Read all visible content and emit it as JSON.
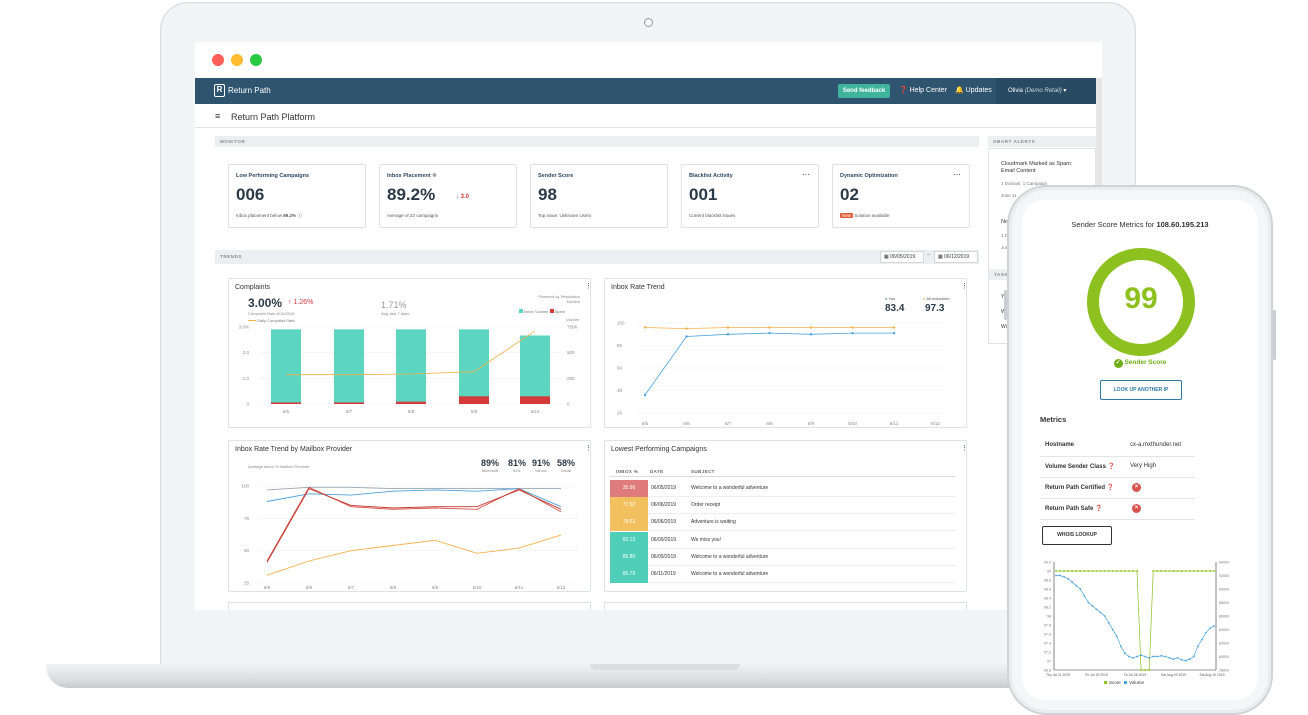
{
  "app": {
    "logo": "Return Path",
    "feedback_label": "Send feedback",
    "help_label": "Help Center",
    "updates_label": "Updates",
    "user_name": "Olivia",
    "user_account": "(Demo Retail)",
    "page_title": "Return Path Platform"
  },
  "monitor": {
    "section_label": "MONITOR",
    "cards": [
      {
        "title": "Low Performing Campaigns",
        "value": "006",
        "delta": "",
        "sub": "Inbox placement below",
        "sub_value": "89.2%"
      },
      {
        "title": "Inbox Placement",
        "value": "89.2%",
        "delta": "3.0",
        "sub": "Average of 23 campaigns"
      },
      {
        "title": "Sender Score",
        "value": "98",
        "delta": "",
        "sub": "Top issue: Unknown Users"
      },
      {
        "title": "Blacklist Activity",
        "value": "001",
        "delta": "",
        "sub": "Current blacklist issues"
      },
      {
        "title": "Dynamic Optimization",
        "value": "02",
        "badge": "New",
        "sub": "Solution available"
      }
    ]
  },
  "smart_alerts": {
    "label": "SMART ALERTS",
    "items": [
      {
        "title": "Cloudmark Marked as Spam: Email Content",
        "meta": "1 Domain, 1 Campaign",
        "date": "June 11"
      },
      {
        "title": "No",
        "meta": "1 Do",
        "date": "June"
      }
    ],
    "second_label": "TASK",
    "second_items": [
      "Ye",
      "Wi",
      "Wi"
    ]
  },
  "trends": {
    "section_label": "TRENDS",
    "date_from": "06/05/2019",
    "date_to": "06/12/2019"
  },
  "complaints": {
    "title": "Complaints",
    "value": "3.00%",
    "delta": "1.26%",
    "value_note": "Complaint Rate 6/10/2019",
    "avg_value": "1.71%",
    "avg_note": "Avg. last 7 days",
    "powered_by": "Powered by Reputation Monitor",
    "legend": [
      "Daily Complaint Rate",
      "Inbox Volume",
      "Spam"
    ],
    "right_axis_title": "Volume",
    "left_ticks": [
      "3.0%",
      "2.0",
      "1.0",
      "0"
    ],
    "right_ticks": [
      "750K",
      "500",
      "250",
      "0"
    ]
  },
  "inbox_rate_trend": {
    "title": "Inbox Rate Trend",
    "you_label": "You",
    "you_value": "83.4",
    "all_label": "All Industries",
    "all_value": "97.3",
    "y_ticks": [
      "100",
      "80",
      "60",
      "40",
      "20"
    ],
    "x_ticks": [
      "6/5",
      "6/6",
      "6/7",
      "6/8",
      "6/9",
      "6/10",
      "6/11",
      "6/12"
    ]
  },
  "mailbox_trend": {
    "title": "Inbox Rate Trend by Mailbox Provider",
    "subtitle": "Average Inbox % Mailbox Provider",
    "providers": [
      {
        "value": "89%",
        "name": "Microsoft"
      },
      {
        "value": "81%",
        "name": "AOL"
      },
      {
        "value": "91%",
        "name": "Yahoo!"
      },
      {
        "value": "58%",
        "name": "Gmail"
      }
    ],
    "y_ticks": [
      "100",
      "75",
      "50",
      "25"
    ],
    "x_ticks": [
      "6/5",
      "6/6",
      "6/7",
      "6/8",
      "6/9",
      "6/10",
      "6/11",
      "6/12"
    ]
  },
  "lowest_campaigns": {
    "title": "Lowest Performing Campaigns",
    "headers": [
      "INBOX %",
      "DATE",
      "SUBJECT"
    ],
    "rows": [
      {
        "inbox": "35.90",
        "date": "06/05/2019",
        "subject": "Welcome to a wonderful adventure",
        "color": "#e07b7b"
      },
      {
        "inbox": "77.50",
        "date": "06/06/2019",
        "subject": "Order receipt",
        "color": "#f2c05e"
      },
      {
        "inbox": "78.63",
        "date": "06/06/2019",
        "subject": "Adventure is waiting",
        "color": "#f2c05e"
      },
      {
        "inbox": "82.13",
        "date": "06/09/2019",
        "subject": "We miss you!",
        "color": "#4fcfb8"
      },
      {
        "inbox": "85.80",
        "date": "06/09/2019",
        "subject": "Welcome to a wonderful adventure",
        "color": "#4fcfb8"
      },
      {
        "inbox": "85.78",
        "date": "06/11/2019",
        "subject": "Welcome to a wonderful adventure",
        "color": "#4fcfb8"
      }
    ]
  },
  "phone": {
    "title": "Sender Score Metrics for",
    "ip": "108.60.195.213",
    "score": "99",
    "score_label": "Sender Score",
    "lookup_button": "LOOK UP ANOTHER IP",
    "metrics_heading": "Metrics",
    "metrics": [
      {
        "label": "Hostname",
        "value": "cx-a.mxthunder.net"
      },
      {
        "label": "Volume Sender Class",
        "value": "Very High"
      },
      {
        "label": "Return Path Certified",
        "value": "x"
      },
      {
        "label": "Return Path Safe",
        "value": "x"
      }
    ],
    "whois_button": "WHOIS LOOKUP",
    "chart_left_ticks": [
      "99.2",
      "99",
      "98.8",
      "98.6",
      "98.4",
      "98.2",
      "98",
      "97.8",
      "97.6",
      "97.4",
      "97.2",
      "97",
      "96.8"
    ],
    "chart_right_ticks": [
      "94000",
      "92000",
      "90000",
      "88000",
      "86000",
      "84000",
      "82000",
      "80000",
      "78000"
    ],
    "chart_x_ticks": [
      "Thu Jul 11 2019",
      "Fri Jul 19 2019",
      "Fri Jul 26 2019",
      "Sat Aug 03 2019",
      "Sat Aug 10 2019"
    ],
    "legend": [
      "Score",
      "Volume"
    ]
  },
  "colors": {
    "nav": "#2f5470",
    "teal": "#5cd6c0",
    "red": "#d43a3a",
    "orange": "#f5b04b",
    "blue": "#4aa3df",
    "green": "#8cc11f"
  }
}
